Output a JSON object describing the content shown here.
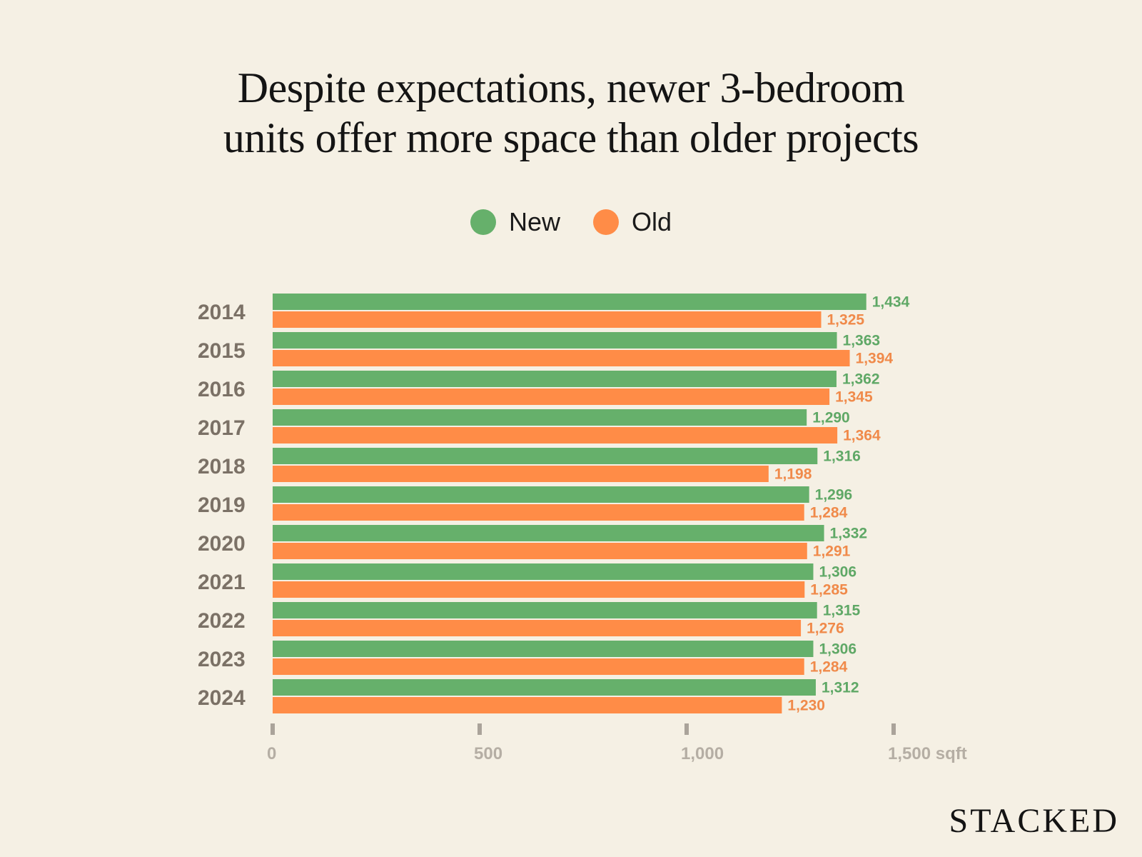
{
  "title_lines": [
    "Despite expectations, newer 3-bedroom",
    "units offer more space than older projects"
  ],
  "legend": [
    {
      "label": "New",
      "color": "#66b06b"
    },
    {
      "label": "Old",
      "color": "#ff8c47"
    }
  ],
  "brand": "STACKED",
  "chart_data": {
    "type": "bar",
    "orientation": "horizontal",
    "title": "Despite expectations, newer 3-bedroom units offer more space than older projects",
    "categories": [
      "2014",
      "2015",
      "2016",
      "2017",
      "2018",
      "2019",
      "2020",
      "2021",
      "2022",
      "2023",
      "2024"
    ],
    "series": [
      {
        "name": "New",
        "color": "#66b06b",
        "label_color": "#5fa866",
        "values": [
          1434,
          1363,
          1362,
          1290,
          1316,
          1296,
          1332,
          1306,
          1315,
          1306,
          1312
        ],
        "labels": [
          "1,434",
          "1,363",
          "1,362",
          "1,290",
          "1,316",
          "1,296",
          "1,332",
          "1,306",
          "1,315",
          "1,306",
          "1,312"
        ]
      },
      {
        "name": "Old",
        "color": "#ff8c47",
        "label_color": "#f08a4a",
        "values": [
          1325,
          1394,
          1345,
          1364,
          1198,
          1284,
          1291,
          1285,
          1276,
          1284,
          1230
        ],
        "labels": [
          "1,325",
          "1,394",
          "1,345",
          "1,364",
          "1,198",
          "1,284",
          "1,291",
          "1,285",
          "1,276",
          "1,284",
          "1,230"
        ]
      }
    ],
    "xlim": [
      0,
      1500
    ],
    "xticks": [
      0,
      500,
      1000,
      1500
    ],
    "xtick_labels": [
      "0",
      "500",
      "1,000",
      "1,500 sqft"
    ],
    "unit": "sqft",
    "legend_position": "top-center"
  }
}
